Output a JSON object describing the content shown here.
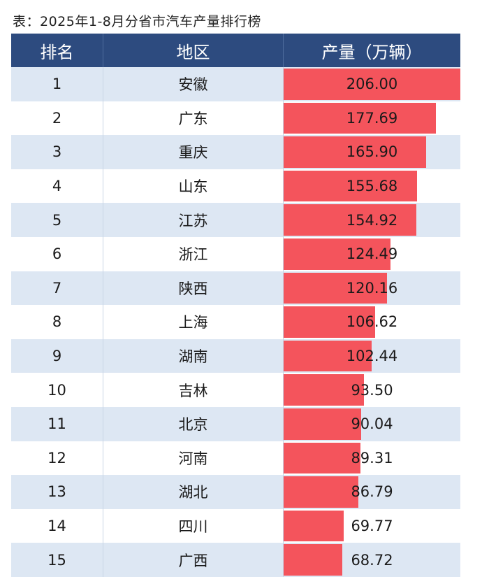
{
  "caption": "表：2025年1-8月分省市汽车产量排行榜",
  "columns": {
    "rank": "排名",
    "region": "地区",
    "output": "产量（万辆）"
  },
  "colors": {
    "header_bg": "#2d4b7f",
    "row_alt": "#dde7f3",
    "bar": "#f4545c"
  },
  "rows": [
    {
      "rank": "1",
      "region": "安徽",
      "output": "206.00"
    },
    {
      "rank": "2",
      "region": "广东",
      "output": "177.69"
    },
    {
      "rank": "3",
      "region": "重庆",
      "output": "165.90"
    },
    {
      "rank": "4",
      "region": "山东",
      "output": "155.68"
    },
    {
      "rank": "5",
      "region": "江苏",
      "output": "154.92"
    },
    {
      "rank": "6",
      "region": "浙江",
      "output": "124.49"
    },
    {
      "rank": "7",
      "region": "陕西",
      "output": "120.16"
    },
    {
      "rank": "8",
      "region": "上海",
      "output": "106.62"
    },
    {
      "rank": "9",
      "region": "湖南",
      "output": "102.44"
    },
    {
      "rank": "10",
      "region": "吉林",
      "output": "93.50"
    },
    {
      "rank": "11",
      "region": "北京",
      "output": "90.04"
    },
    {
      "rank": "12",
      "region": "河南",
      "output": "89.31"
    },
    {
      "rank": "13",
      "region": "湖北",
      "output": "86.79"
    },
    {
      "rank": "14",
      "region": "四川",
      "output": "69.77"
    },
    {
      "rank": "15",
      "region": "广西",
      "output": "68.72"
    }
  ]
}
